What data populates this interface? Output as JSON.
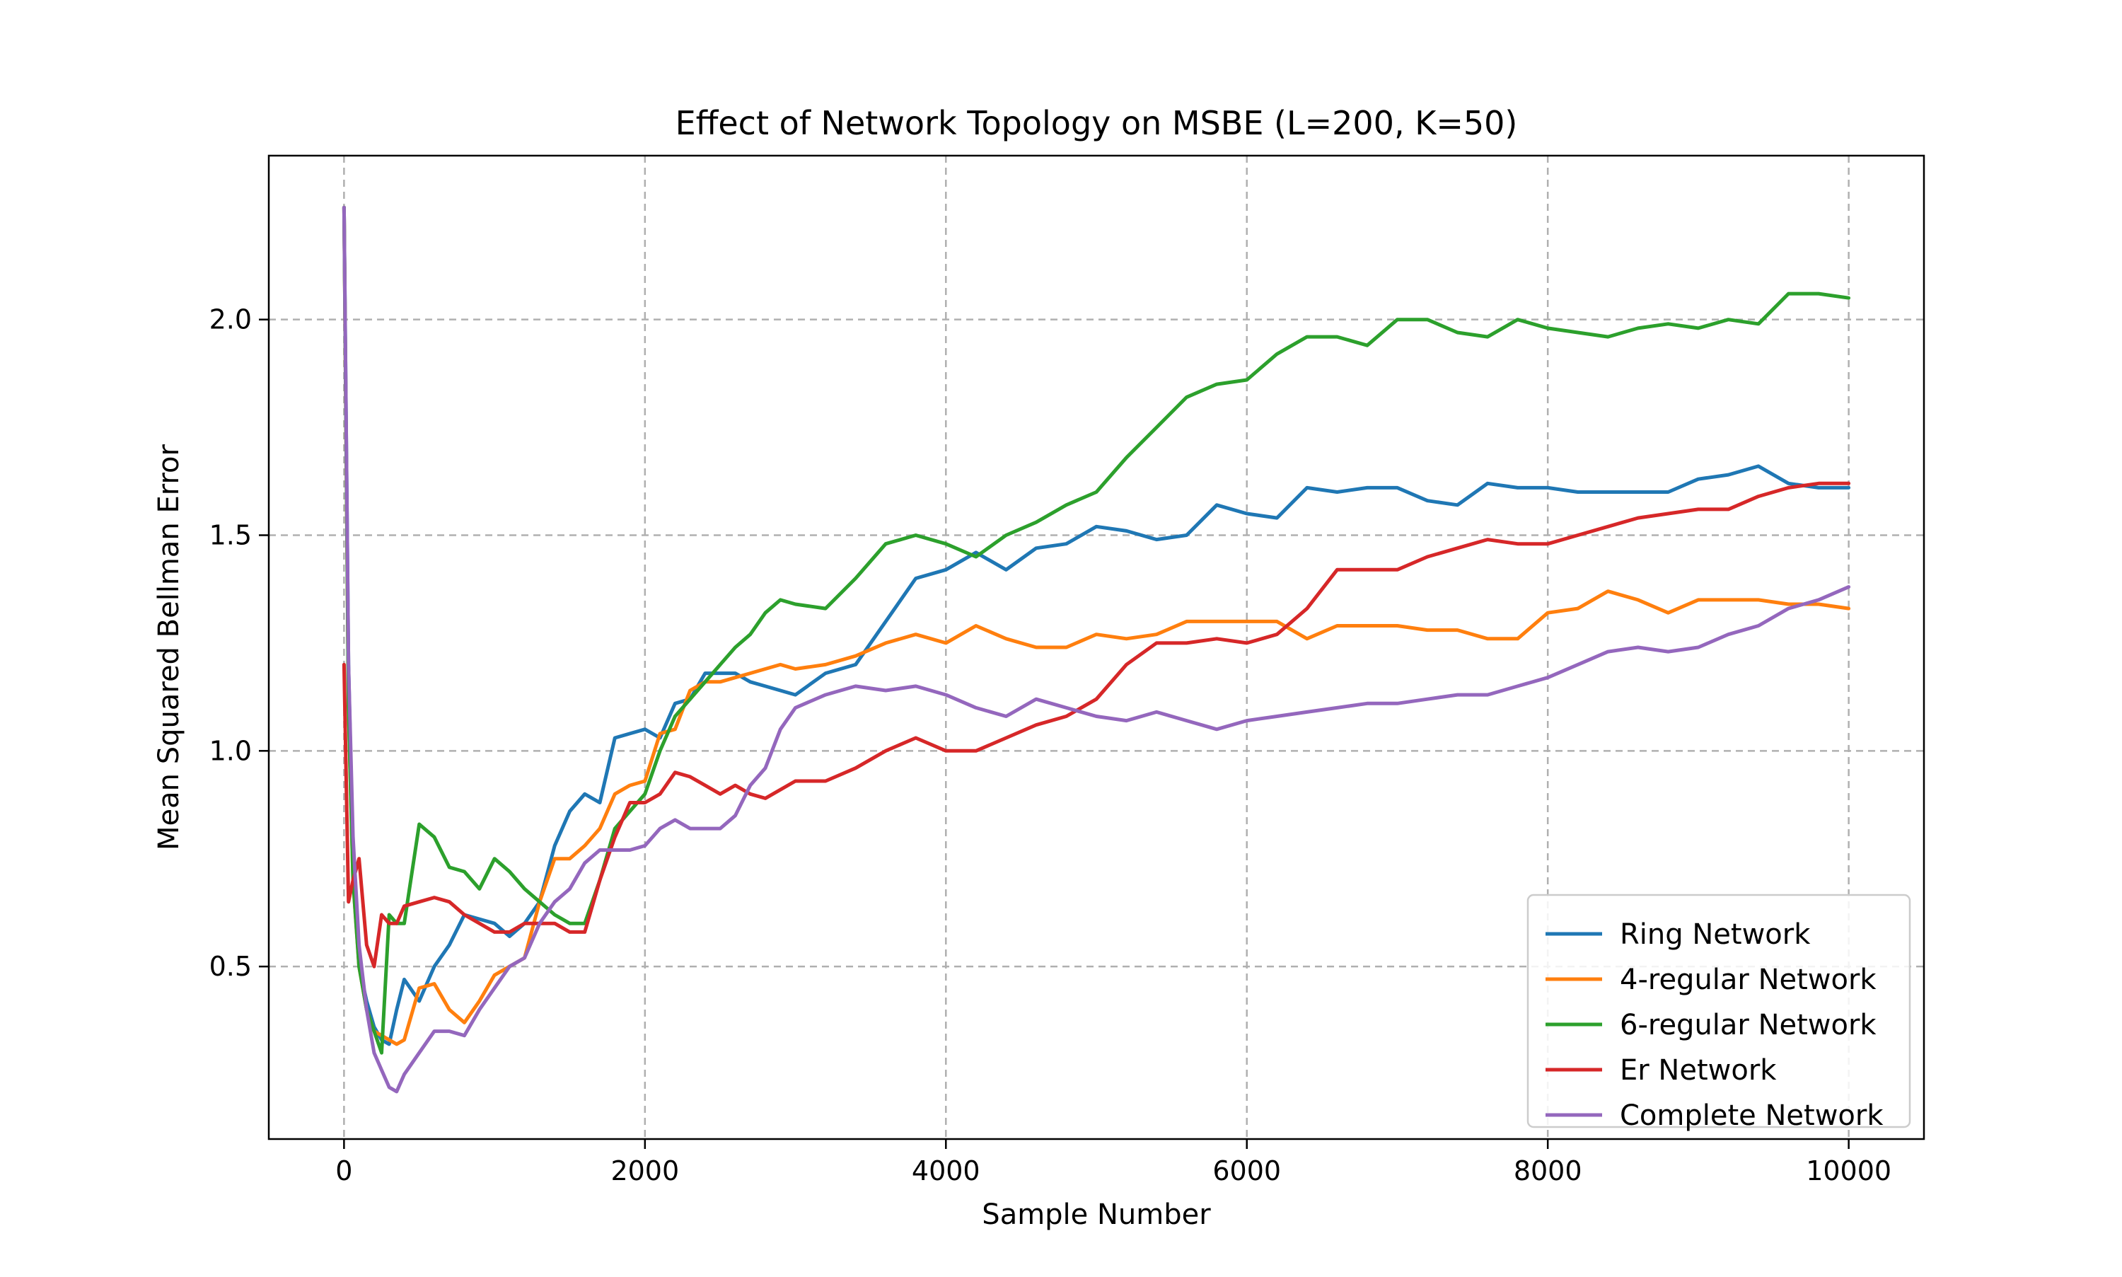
{
  "chart_data": {
    "type": "line",
    "title": "Effect of Network Topology on MSBE (L=200, K=50)",
    "xlabel": "Sample Number",
    "ylabel": "Mean Squared Bellman Error",
    "xlim": [
      -500,
      10500
    ],
    "ylim": [
      0.1,
      2.38
    ],
    "xticks": [
      0,
      2000,
      4000,
      6000,
      8000,
      10000
    ],
    "xtick_labels": [
      "0",
      "2000",
      "4000",
      "6000",
      "8000",
      "10000"
    ],
    "yticks": [
      0.5,
      1.0,
      1.5,
      2.0
    ],
    "ytick_labels": [
      "0.5",
      "1.0",
      "1.5",
      "2.0"
    ],
    "grid": true,
    "legend_position": "lower-right",
    "x": [
      0,
      30,
      60,
      100,
      150,
      200,
      250,
      300,
      350,
      400,
      500,
      600,
      700,
      800,
      900,
      1000,
      1100,
      1200,
      1300,
      1400,
      1500,
      1600,
      1700,
      1800,
      1900,
      2000,
      2100,
      2200,
      2300,
      2400,
      2500,
      2600,
      2700,
      2800,
      2900,
      3000,
      3200,
      3400,
      3600,
      3800,
      4000,
      4200,
      4400,
      4600,
      4800,
      5000,
      5200,
      5400,
      5600,
      5800,
      6000,
      6200,
      6400,
      6600,
      6800,
      7000,
      7200,
      7400,
      7600,
      7800,
      8000,
      8200,
      8400,
      8600,
      8800,
      9000,
      9200,
      9400,
      9600,
      9800,
      10000
    ],
    "series": [
      {
        "name": "Ring Network",
        "color": "#1f77b4",
        "values": [
          2.26,
          1.2,
          0.75,
          0.5,
          0.42,
          0.36,
          0.33,
          0.32,
          0.4,
          0.47,
          0.42,
          0.5,
          0.55,
          0.62,
          0.61,
          0.6,
          0.57,
          0.6,
          0.65,
          0.78,
          0.86,
          0.9,
          0.88,
          1.03,
          1.04,
          1.05,
          1.03,
          1.11,
          1.12,
          1.18,
          1.18,
          1.18,
          1.16,
          1.15,
          1.14,
          1.13,
          1.18,
          1.2,
          1.3,
          1.4,
          1.42,
          1.46,
          1.42,
          1.47,
          1.48,
          1.52,
          1.51,
          1.49,
          1.5,
          1.57,
          1.55,
          1.54,
          1.61,
          1.6,
          1.61,
          1.61,
          1.58,
          1.57,
          1.62,
          1.61,
          1.61,
          1.6,
          1.6,
          1.6,
          1.6,
          1.63,
          1.64,
          1.66,
          1.62,
          1.61,
          1.61
        ]
      },
      {
        "name": "4-regular Network",
        "color": "#ff7f0e",
        "values": [
          2.26,
          1.1,
          0.7,
          0.5,
          0.4,
          0.35,
          0.34,
          0.33,
          0.32,
          0.33,
          0.45,
          0.46,
          0.4,
          0.37,
          0.42,
          0.48,
          0.5,
          0.52,
          0.65,
          0.75,
          0.75,
          0.78,
          0.82,
          0.9,
          0.92,
          0.93,
          1.04,
          1.05,
          1.14,
          1.16,
          1.16,
          1.17,
          1.18,
          1.19,
          1.2,
          1.19,
          1.2,
          1.22,
          1.25,
          1.27,
          1.25,
          1.29,
          1.26,
          1.24,
          1.24,
          1.27,
          1.26,
          1.27,
          1.3,
          1.3,
          1.3,
          1.3,
          1.26,
          1.29,
          1.29,
          1.29,
          1.28,
          1.28,
          1.26,
          1.26,
          1.32,
          1.33,
          1.37,
          1.35,
          1.32,
          1.35,
          1.35,
          1.35,
          1.34,
          1.34,
          1.33
        ]
      },
      {
        "name": "6-regular Network",
        "color": "#2ca02c",
        "values": [
          2.26,
          1.1,
          0.7,
          0.5,
          0.4,
          0.35,
          0.3,
          0.62,
          0.6,
          0.6,
          0.83,
          0.8,
          0.73,
          0.72,
          0.68,
          0.75,
          0.72,
          0.68,
          0.65,
          0.62,
          0.6,
          0.6,
          0.7,
          0.82,
          0.86,
          0.9,
          1.0,
          1.08,
          1.12,
          1.16,
          1.2,
          1.24,
          1.27,
          1.32,
          1.35,
          1.34,
          1.33,
          1.4,
          1.48,
          1.5,
          1.48,
          1.45,
          1.5,
          1.53,
          1.57,
          1.6,
          1.68,
          1.75,
          1.82,
          1.85,
          1.86,
          1.92,
          1.96,
          1.96,
          1.94,
          2.0,
          2.0,
          1.97,
          1.96,
          2.0,
          1.98,
          1.97,
          1.96,
          1.98,
          1.99,
          1.98,
          2.0,
          1.99,
          2.06,
          2.06,
          2.05
        ]
      },
      {
        "name": "Er Network",
        "color": "#d62728",
        "values": [
          1.2,
          0.65,
          0.7,
          0.75,
          0.55,
          0.5,
          0.62,
          0.6,
          0.6,
          0.64,
          0.65,
          0.66,
          0.65,
          0.62,
          0.6,
          0.58,
          0.58,
          0.6,
          0.6,
          0.6,
          0.58,
          0.58,
          0.7,
          0.8,
          0.88,
          0.88,
          0.9,
          0.95,
          0.94,
          0.92,
          0.9,
          0.92,
          0.9,
          0.89,
          0.91,
          0.93,
          0.93,
          0.96,
          1.0,
          1.03,
          1.0,
          1.0,
          1.03,
          1.06,
          1.08,
          1.12,
          1.2,
          1.25,
          1.25,
          1.26,
          1.25,
          1.27,
          1.33,
          1.42,
          1.42,
          1.42,
          1.45,
          1.47,
          1.49,
          1.48,
          1.48,
          1.5,
          1.52,
          1.54,
          1.55,
          1.56,
          1.56,
          1.59,
          1.61,
          1.62,
          1.62
        ]
      },
      {
        "name": "Complete Network",
        "color": "#9467bd",
        "values": [
          2.26,
          1.2,
          0.8,
          0.55,
          0.4,
          0.3,
          0.26,
          0.22,
          0.21,
          0.25,
          0.3,
          0.35,
          0.35,
          0.34,
          0.4,
          0.45,
          0.5,
          0.52,
          0.6,
          0.65,
          0.68,
          0.74,
          0.77,
          0.77,
          0.77,
          0.78,
          0.82,
          0.84,
          0.82,
          0.82,
          0.82,
          0.85,
          0.92,
          0.96,
          1.05,
          1.1,
          1.13,
          1.15,
          1.14,
          1.15,
          1.13,
          1.1,
          1.08,
          1.12,
          1.1,
          1.08,
          1.07,
          1.09,
          1.07,
          1.05,
          1.07,
          1.08,
          1.09,
          1.1,
          1.11,
          1.11,
          1.12,
          1.13,
          1.13,
          1.15,
          1.17,
          1.2,
          1.23,
          1.24,
          1.23,
          1.24,
          1.27,
          1.29,
          1.33,
          1.35,
          1.38
        ]
      }
    ]
  }
}
